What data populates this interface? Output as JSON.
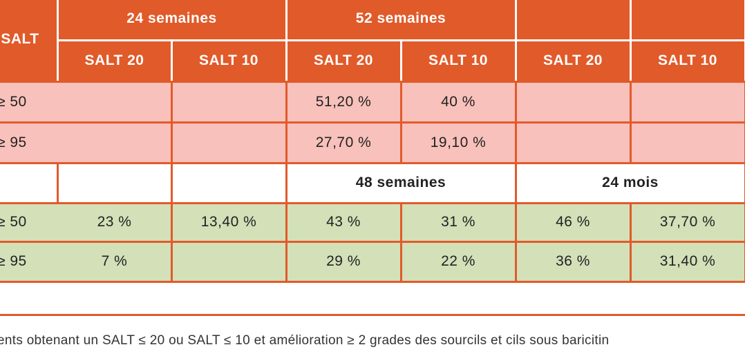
{
  "table": {
    "header_rows": [
      [
        "SALT",
        "24 semaines",
        "52 semaines"
      ],
      [
        "SALT 20",
        "SALT 10",
        "SALT 20",
        "SALT 10",
        "SALT 20",
        "SALT 10"
      ]
    ],
    "rows": [
      [
        "≥ 50",
        null,
        null,
        "51,20 %",
        "40 %",
        null,
        null
      ],
      [
        "≥ 95",
        null,
        null,
        "27,70 %",
        "19,10 %",
        null,
        null
      ],
      [
        "≥ 50",
        "23 %",
        "13,40 %",
        "43 %",
        "31 %",
        "46 %",
        "37,70 %"
      ],
      [
        "≥ 95",
        "7 %",
        null,
        "29 %",
        "22 %",
        "36 %",
        "31,40 %"
      ]
    ],
    "subheader": [
      "48 semaines",
      "24 mois"
    ]
  },
  "footnote": "ents obtenant un SALT ≤ 20 ou SALT ≤ 10 et amélioration ≥ 2 grades des sourcils et cils sous baricitin"
}
